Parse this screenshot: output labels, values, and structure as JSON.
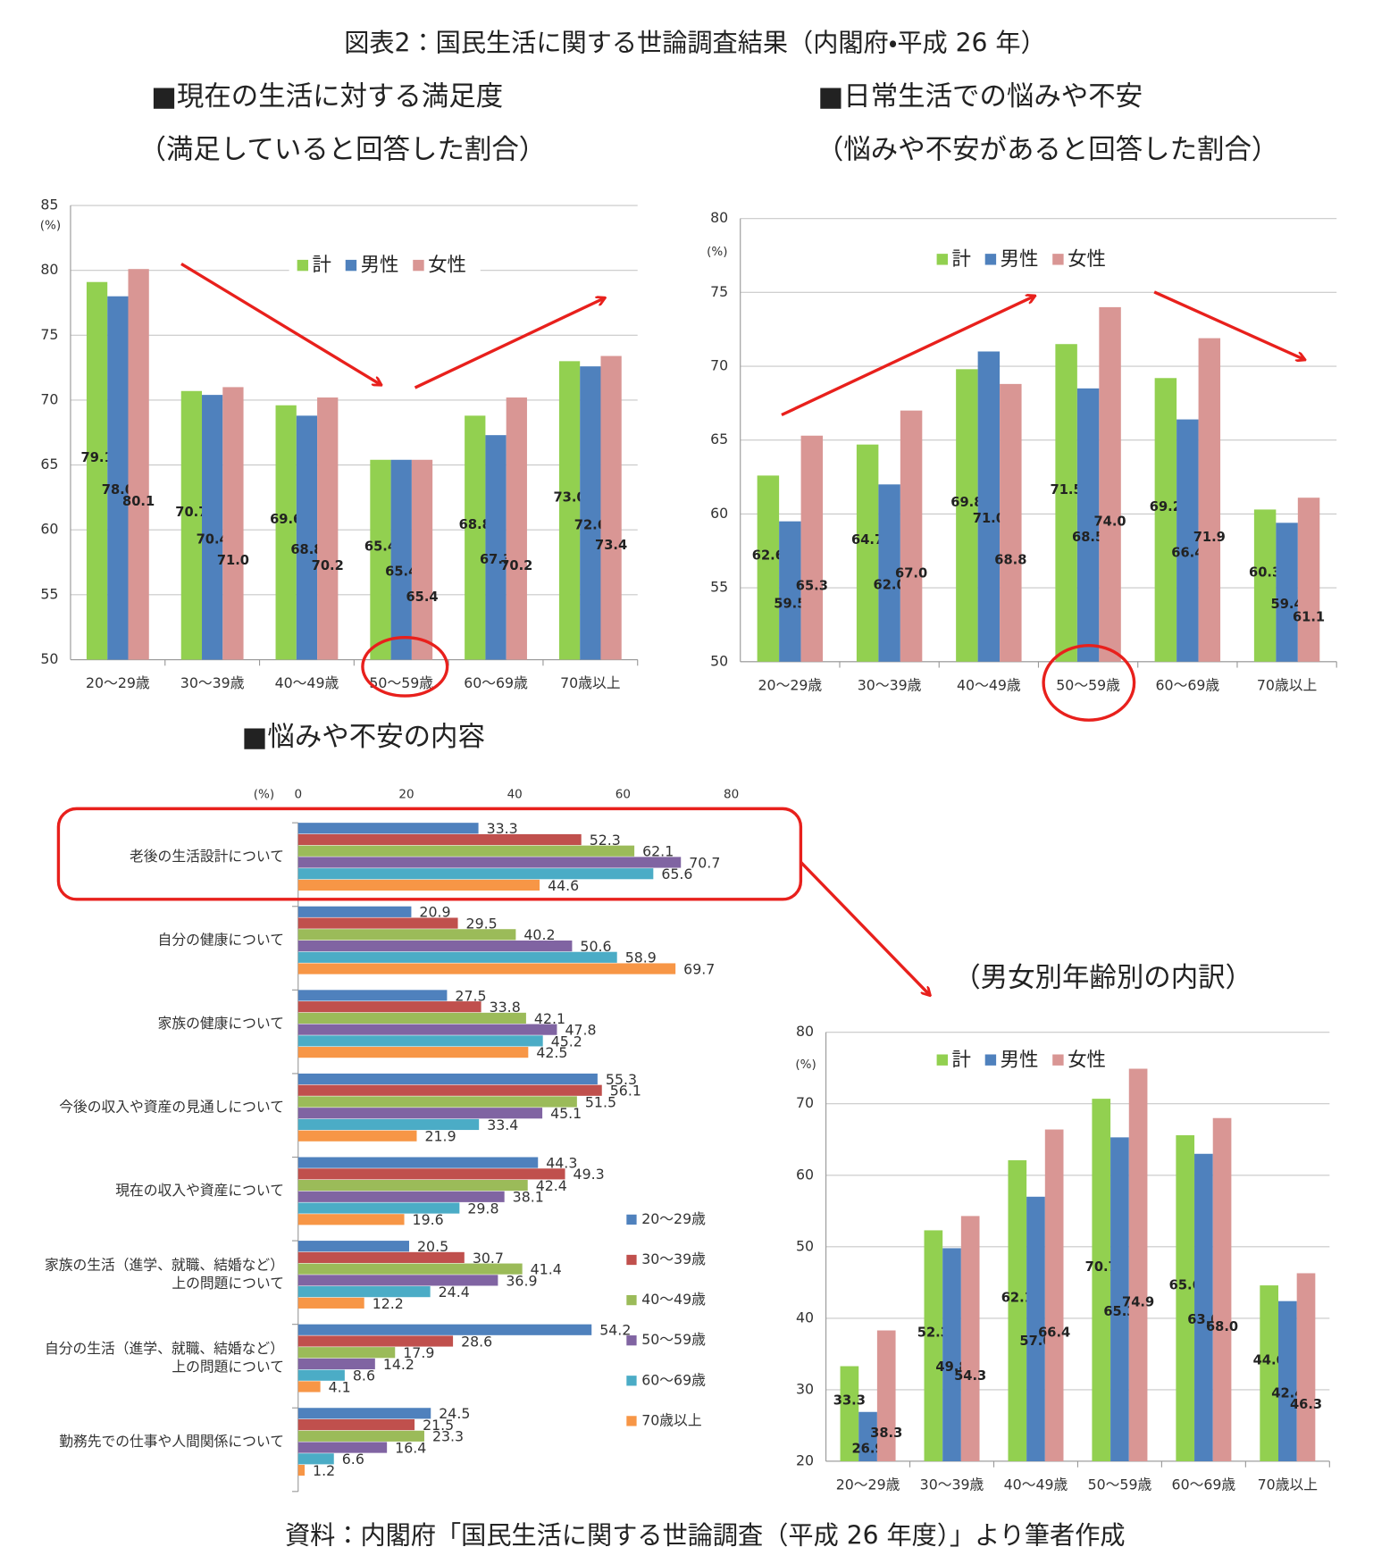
{
  "title": "図表2：国民生活に関する世論調査結果（内閣府・平成 26 年）",
  "source": "資料：内閣府「国民生活に関する世論調査（平成 26 年度）」より筆者作成",
  "chart_data": [
    {
      "type": "bar",
      "title": "■現在の生活に対する満足度",
      "subtitle": "（満足していると回答した割合）",
      "ylabel": "(%)",
      "categories": [
        "20～29歳",
        "30～39歳",
        "40～49歳",
        "50～59歳",
        "60～69歳",
        "70歳以上"
      ],
      "series": [
        {
          "name": "計",
          "color": "#92d050",
          "values": [
            79.1,
            70.7,
            69.6,
            65.4,
            68.8,
            73.0
          ],
          "value_labels": [
            "79.1",
            "70.7",
            "69.6",
            "65.4",
            "68.8",
            "73.0"
          ]
        },
        {
          "name": "男性",
          "color": "#4f81bd",
          "values": [
            78.0,
            70.4,
            68.8,
            65.4,
            67.3,
            72.6
          ],
          "value_labels": [
            "78.0",
            "70.4",
            "68.8",
            "65.4",
            "67.3",
            "72.6"
          ]
        },
        {
          "name": "女性",
          "color": "#d99694",
          "values": [
            80.1,
            71.0,
            70.2,
            65.4,
            70.2,
            73.4
          ],
          "value_labels": [
            "80.1",
            "71.0",
            "70.2",
            "65.4",
            "70.2",
            "73.4"
          ]
        }
      ],
      "ylim": [
        50,
        85
      ],
      "yticks": [
        50,
        55,
        60,
        65,
        70,
        75,
        80,
        85
      ],
      "grid": true,
      "legend": "top"
    },
    {
      "type": "bar",
      "title": "■日常生活での悩みや不安",
      "subtitle": "（悩みや不安があると回答した割合）",
      "ylabel": "(%)",
      "categories": [
        "20～29歳",
        "30～39歳",
        "40～49歳",
        "50～59歳",
        "60～69歳",
        "70歳以上"
      ],
      "series": [
        {
          "name": "計",
          "color": "#92d050",
          "values": [
            62.6,
            64.7,
            69.8,
            71.5,
            69.2,
            60.3
          ],
          "value_labels": [
            "62.6",
            "64.7",
            "69.8",
            "71.5",
            "69.2",
            "60.3"
          ]
        },
        {
          "name": "男性",
          "color": "#4f81bd",
          "values": [
            59.5,
            62.0,
            71.0,
            68.5,
            66.4,
            59.4
          ],
          "value_labels": [
            "59.5",
            "62.0",
            "71.0",
            "68.5",
            "66.4",
            "59.4"
          ]
        },
        {
          "name": "女性",
          "color": "#d99694",
          "values": [
            65.3,
            67.0,
            68.8,
            74.0,
            71.9,
            61.1
          ],
          "value_labels": [
            "65.3",
            "67.0",
            "68.8",
            "74.0",
            "71.9",
            "61.1"
          ]
        }
      ],
      "ylim": [
        50,
        80
      ],
      "yticks": [
        50,
        55,
        60,
        65,
        70,
        75,
        80
      ],
      "grid": true,
      "legend": "top"
    },
    {
      "type": "hbar",
      "title": "■悩みや不安の内容",
      "xlabel": "(%)",
      "categories": [
        "老後の生活設計について",
        "自分の健康について",
        "家族の健康について",
        "今後の収入や資産の見通しについて",
        "現在の収入や資産について",
        [
          "家族の生活（進学、就職、結婚など）",
          "上の問題について"
        ],
        [
          "自分の生活（進学、就職、結婚など）",
          "上の問題について"
        ],
        "勤務先での仕事や人間関係について"
      ],
      "series": [
        {
          "name": "20～29歳",
          "color": "#4f81bd",
          "values": [
            33.3,
            20.9,
            27.5,
            55.3,
            44.3,
            20.5,
            54.2,
            24.5
          ]
        },
        {
          "name": "30～39歳",
          "color": "#c0504d",
          "values": [
            52.3,
            29.5,
            33.8,
            56.1,
            49.3,
            30.7,
            28.6,
            21.5
          ]
        },
        {
          "name": "40～49歳",
          "color": "#9bbb59",
          "values": [
            62.1,
            40.2,
            42.1,
            51.5,
            42.4,
            41.4,
            17.9,
            23.3
          ]
        },
        {
          "name": "50～59歳",
          "color": "#8064a2",
          "values": [
            70.7,
            50.6,
            47.8,
            45.1,
            38.1,
            36.9,
            14.2,
            16.4
          ]
        },
        {
          "name": "60～69歳",
          "color": "#4bacc6",
          "values": [
            65.6,
            58.9,
            45.2,
            33.4,
            29.8,
            24.4,
            8.6,
            6.6
          ]
        },
        {
          "name": "70歳以上",
          "color": "#f79646",
          "values": [
            44.6,
            69.7,
            42.5,
            21.9,
            19.6,
            12.2,
            4.1,
            1.2
          ]
        }
      ],
      "xlim": [
        0,
        80
      ],
      "xticks": [
        0,
        20,
        40,
        60,
        80
      ],
      "grid": false,
      "legend": "right"
    },
    {
      "type": "bar",
      "title": "（男女別年齢別の内訳）",
      "ylabel": "(%)",
      "categories": [
        "20～29歳",
        "30～39歳",
        "40～49歳",
        "50～59歳",
        "60～69歳",
        "70歳以上"
      ],
      "series": [
        {
          "name": "計",
          "color": "#92d050",
          "values": [
            33.3,
            52.3,
            62.1,
            70.7,
            65.6,
            44.6
          ],
          "value_labels": [
            "33.3",
            "52.3",
            "62.1",
            "70.7",
            "65.6",
            "44.6"
          ]
        },
        {
          "name": "男性",
          "color": "#4f81bd",
          "values": [
            26.9,
            49.8,
            57.0,
            65.3,
            63.0,
            42.4
          ],
          "value_labels": [
            "26.9",
            "49.8",
            "57.0",
            "65.3",
            "63.0",
            "42.4"
          ]
        },
        {
          "name": "女性",
          "color": "#d99694",
          "values": [
            38.3,
            54.3,
            66.4,
            74.9,
            68.0,
            46.3
          ],
          "value_labels": [
            "38.3",
            "54.3",
            "66.4",
            "74.9",
            "68.0",
            "46.3"
          ]
        }
      ],
      "ylim": [
        20,
        80
      ],
      "yticks": [
        20,
        30,
        40,
        50,
        60,
        70,
        80
      ],
      "grid": true,
      "legend": "top"
    }
  ]
}
